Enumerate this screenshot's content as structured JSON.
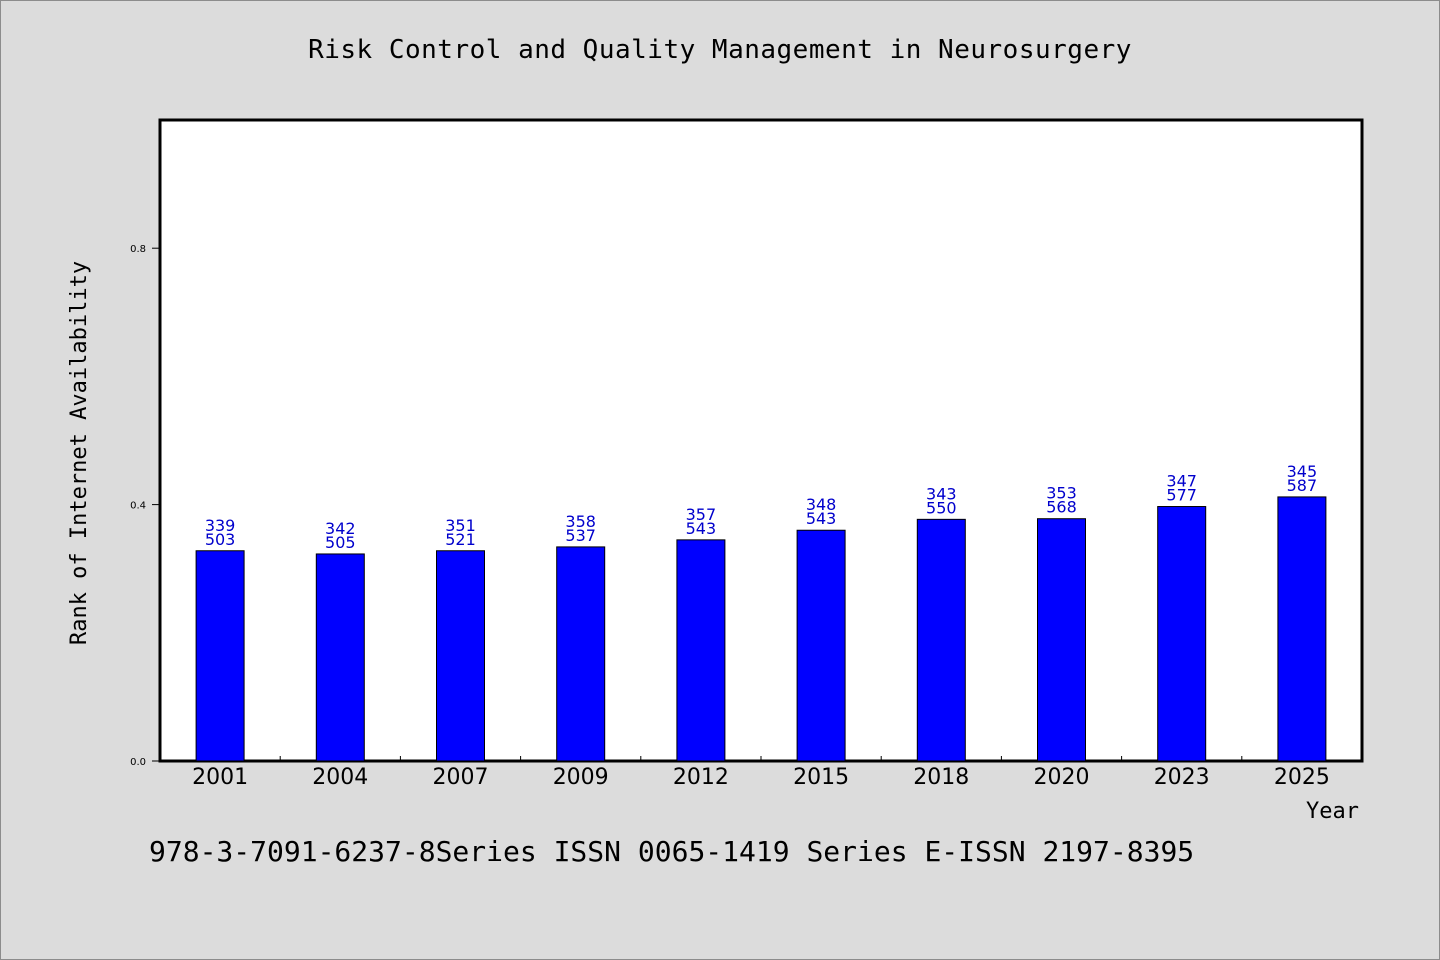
{
  "title": "Risk Control and Quality Management in Neurosurgery",
  "footer": "978-3-7091-6237-8Series ISSN 0065-1419 Series E-ISSN 2197-8395",
  "chart_data": {
    "type": "bar",
    "title": "Risk Control and Quality Management in Neurosurgery",
    "xlabel": "Year",
    "ylabel": "Rank of Internet Availability",
    "ylim": [
      0,
      1.0
    ],
    "yticks": [
      "0.0",
      "0.4",
      "0.8"
    ],
    "categories": [
      "2001",
      "2004",
      "2007",
      "2009",
      "2012",
      "2015",
      "2018",
      "2020",
      "2023",
      "2025"
    ],
    "values": [
      0.328,
      0.323,
      0.328,
      0.334,
      0.345,
      0.36,
      0.377,
      0.378,
      0.397,
      0.412
    ],
    "bar_labels": [
      [
        "339",
        "503"
      ],
      [
        "342",
        "505"
      ],
      [
        "351",
        "521"
      ],
      [
        "358",
        "537"
      ],
      [
        "357",
        "543"
      ],
      [
        "348",
        "543"
      ],
      [
        "343",
        "550"
      ],
      [
        "353",
        "568"
      ],
      [
        "347",
        "577"
      ],
      [
        "345",
        "587"
      ]
    ],
    "bar_color": "#0000ff",
    "label_color": "#0000cc",
    "grid": false,
    "legend": "none"
  }
}
